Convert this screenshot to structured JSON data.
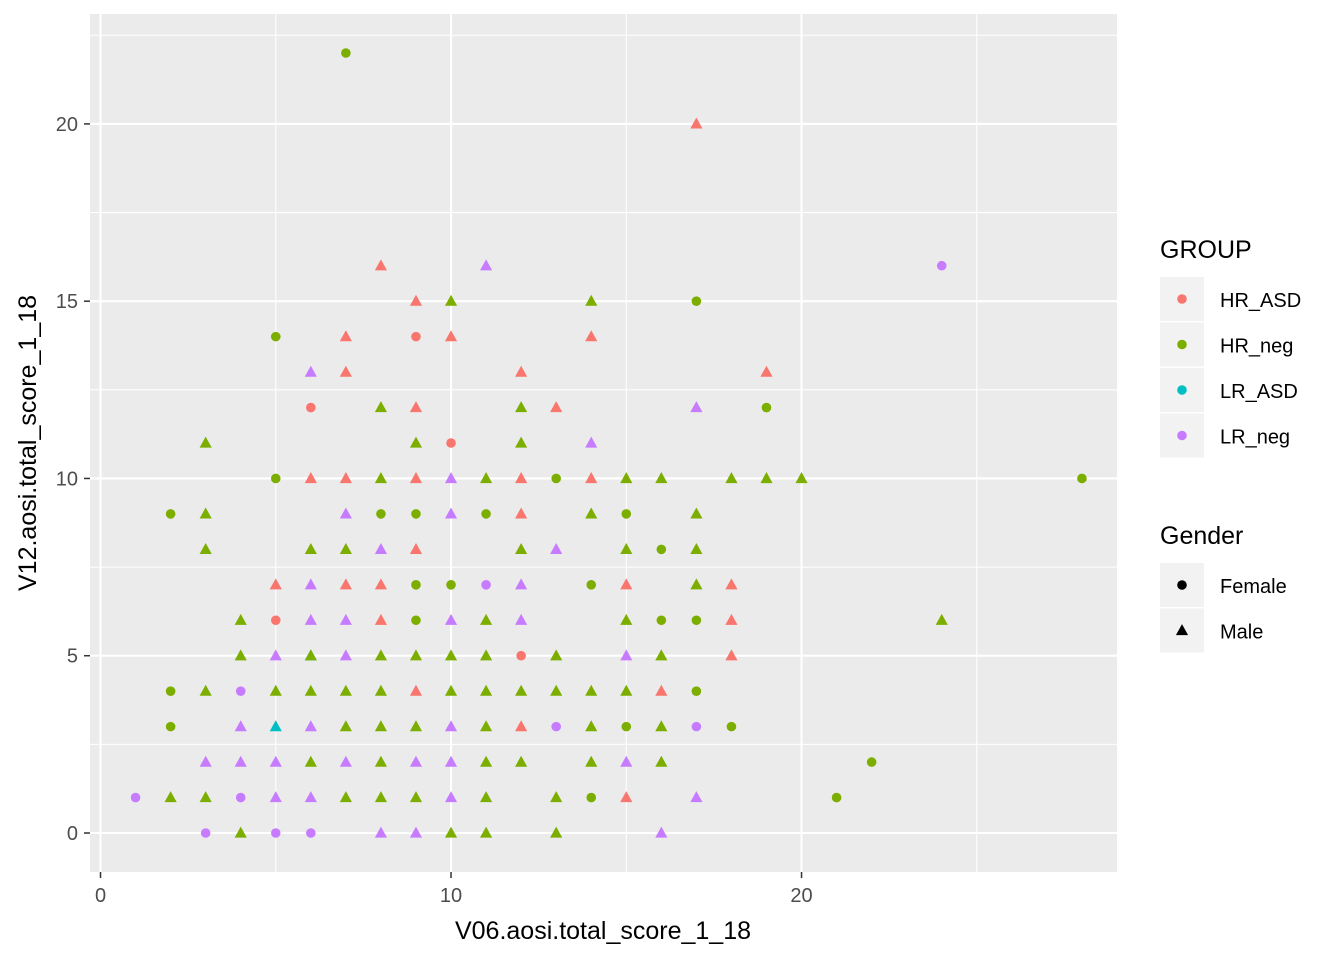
{
  "colors": {
    "panel_bg": "#EBEBEB",
    "grid": "#FFFFFF",
    "legend_key_bg": "#F2F2F2",
    "HR_ASD": "#F8766D",
    "HR_neg": "#7CAE00",
    "LR_ASD": "#00BFC4",
    "LR_neg": "#C77CFF"
  },
  "chart_data": {
    "type": "scatter",
    "title": "",
    "xlabel": "V06.aosi.total_score_1_18",
    "ylabel": "V12.aosi.total_score_1_18",
    "xlim": [
      -0.3,
      29.0
    ],
    "ylim": [
      -1.1,
      23.1
    ],
    "x_ticks": [
      0,
      10,
      20
    ],
    "y_ticks": [
      0,
      5,
      10,
      15,
      20
    ],
    "grid": true,
    "legend_position": "right",
    "color_legend": {
      "title": "GROUP",
      "entries": [
        "HR_ASD",
        "HR_neg",
        "LR_ASD",
        "LR_neg"
      ]
    },
    "shape_legend": {
      "title": "Gender",
      "entries": [
        {
          "label": "Female",
          "shape": "circle"
        },
        {
          "label": "Male",
          "shape": "triangle"
        }
      ]
    },
    "points": [
      [
        7,
        22,
        "HR_neg",
        "F"
      ],
      [
        17,
        20,
        "HR_ASD",
        "M"
      ],
      [
        24,
        16,
        "LR_neg",
        "F"
      ],
      [
        8,
        16,
        "HR_ASD",
        "M"
      ],
      [
        11,
        16,
        "LR_neg",
        "M"
      ],
      [
        9,
        15,
        "HR_ASD",
        "M"
      ],
      [
        10,
        15,
        "HR_neg",
        "M"
      ],
      [
        14,
        15,
        "HR_neg",
        "M"
      ],
      [
        17,
        15,
        "HR_neg",
        "F"
      ],
      [
        5,
        14,
        "HR_neg",
        "F"
      ],
      [
        7,
        14,
        "HR_ASD",
        "M"
      ],
      [
        9,
        14,
        "HR_ASD",
        "F"
      ],
      [
        10,
        14,
        "HR_ASD",
        "M"
      ],
      [
        14,
        14,
        "HR_ASD",
        "M"
      ],
      [
        6,
        13,
        "LR_neg",
        "M"
      ],
      [
        7,
        13,
        "HR_ASD",
        "M"
      ],
      [
        12,
        13,
        "HR_ASD",
        "M"
      ],
      [
        19,
        13,
        "HR_ASD",
        "M"
      ],
      [
        6,
        12,
        "HR_ASD",
        "F"
      ],
      [
        8,
        12,
        "HR_neg",
        "M"
      ],
      [
        9,
        12,
        "HR_ASD",
        "M"
      ],
      [
        12,
        12,
        "HR_neg",
        "M"
      ],
      [
        13,
        12,
        "HR_ASD",
        "M"
      ],
      [
        17,
        12,
        "LR_neg",
        "M"
      ],
      [
        19,
        12,
        "HR_neg",
        "F"
      ],
      [
        3,
        11,
        "HR_neg",
        "M"
      ],
      [
        9,
        11,
        "HR_neg",
        "M"
      ],
      [
        10,
        11,
        "HR_ASD",
        "F"
      ],
      [
        12,
        11,
        "HR_neg",
        "M"
      ],
      [
        14,
        11,
        "LR_neg",
        "M"
      ],
      [
        5,
        10,
        "HR_neg",
        "F"
      ],
      [
        6,
        10,
        "HR_ASD",
        "M"
      ],
      [
        7,
        10,
        "HR_ASD",
        "M"
      ],
      [
        8,
        10,
        "HR_neg",
        "M"
      ],
      [
        9,
        10,
        "HR_ASD",
        "M"
      ],
      [
        10,
        10,
        "LR_neg",
        "M"
      ],
      [
        11,
        10,
        "HR_neg",
        "M"
      ],
      [
        12,
        10,
        "HR_ASD",
        "M"
      ],
      [
        13,
        10,
        "HR_neg",
        "F"
      ],
      [
        14,
        10,
        "HR_ASD",
        "M"
      ],
      [
        15,
        10,
        "HR_neg",
        "M"
      ],
      [
        16,
        10,
        "HR_neg",
        "M"
      ],
      [
        18,
        10,
        "HR_neg",
        "M"
      ],
      [
        19,
        10,
        "HR_neg",
        "M"
      ],
      [
        20,
        10,
        "HR_neg",
        "M"
      ],
      [
        28,
        10,
        "HR_neg",
        "F"
      ],
      [
        2,
        9,
        "HR_neg",
        "F"
      ],
      [
        3,
        9,
        "HR_neg",
        "M"
      ],
      [
        7,
        9,
        "LR_neg",
        "M"
      ],
      [
        8,
        9,
        "HR_neg",
        "F"
      ],
      [
        9,
        9,
        "HR_neg",
        "F"
      ],
      [
        10,
        9,
        "LR_neg",
        "M"
      ],
      [
        11,
        9,
        "HR_neg",
        "F"
      ],
      [
        12,
        9,
        "HR_ASD",
        "M"
      ],
      [
        14,
        9,
        "HR_neg",
        "M"
      ],
      [
        15,
        9,
        "HR_neg",
        "F"
      ],
      [
        17,
        9,
        "HR_neg",
        "M"
      ],
      [
        3,
        8,
        "HR_neg",
        "M"
      ],
      [
        6,
        8,
        "HR_neg",
        "M"
      ],
      [
        7,
        8,
        "HR_neg",
        "M"
      ],
      [
        8,
        8,
        "LR_neg",
        "M"
      ],
      [
        9,
        8,
        "HR_ASD",
        "M"
      ],
      [
        12,
        8,
        "HR_neg",
        "M"
      ],
      [
        13,
        8,
        "LR_neg",
        "M"
      ],
      [
        15,
        8,
        "HR_neg",
        "M"
      ],
      [
        16,
        8,
        "HR_neg",
        "F"
      ],
      [
        17,
        8,
        "HR_neg",
        "M"
      ],
      [
        5,
        7,
        "HR_ASD",
        "M"
      ],
      [
        6,
        7,
        "LR_neg",
        "M"
      ],
      [
        7,
        7,
        "HR_ASD",
        "M"
      ],
      [
        8,
        7,
        "HR_ASD",
        "M"
      ],
      [
        9,
        7,
        "HR_neg",
        "F"
      ],
      [
        10,
        7,
        "HR_neg",
        "F"
      ],
      [
        11,
        7,
        "LR_neg",
        "F"
      ],
      [
        12,
        7,
        "LR_neg",
        "M"
      ],
      [
        14,
        7,
        "HR_neg",
        "F"
      ],
      [
        15,
        7,
        "HR_ASD",
        "M"
      ],
      [
        17,
        7,
        "HR_neg",
        "M"
      ],
      [
        18,
        7,
        "HR_ASD",
        "M"
      ],
      [
        4,
        6,
        "HR_neg",
        "M"
      ],
      [
        5,
        6,
        "HR_ASD",
        "F"
      ],
      [
        6,
        6,
        "LR_neg",
        "M"
      ],
      [
        7,
        6,
        "LR_neg",
        "M"
      ],
      [
        8,
        6,
        "HR_ASD",
        "M"
      ],
      [
        9,
        6,
        "HR_neg",
        "F"
      ],
      [
        10,
        6,
        "LR_neg",
        "M"
      ],
      [
        11,
        6,
        "HR_neg",
        "M"
      ],
      [
        12,
        6,
        "LR_neg",
        "M"
      ],
      [
        15,
        6,
        "HR_neg",
        "M"
      ],
      [
        16,
        6,
        "HR_neg",
        "F"
      ],
      [
        17,
        6,
        "HR_neg",
        "F"
      ],
      [
        18,
        6,
        "HR_ASD",
        "M"
      ],
      [
        24,
        6,
        "HR_neg",
        "M"
      ],
      [
        4,
        5,
        "HR_neg",
        "M"
      ],
      [
        5,
        5,
        "LR_neg",
        "M"
      ],
      [
        6,
        5,
        "LR_ASD",
        "M"
      ],
      [
        6,
        5,
        "HR_neg",
        "M"
      ],
      [
        7,
        5,
        "LR_neg",
        "M"
      ],
      [
        8,
        5,
        "HR_neg",
        "M"
      ],
      [
        9,
        5,
        "HR_neg",
        "M"
      ],
      [
        10,
        5,
        "HR_neg",
        "M"
      ],
      [
        11,
        5,
        "HR_neg",
        "M"
      ],
      [
        12,
        5,
        "HR_ASD",
        "F"
      ],
      [
        13,
        5,
        "HR_neg",
        "M"
      ],
      [
        15,
        5,
        "LR_neg",
        "M"
      ],
      [
        16,
        5,
        "HR_neg",
        "M"
      ],
      [
        18,
        5,
        "HR_ASD",
        "M"
      ],
      [
        2,
        4,
        "HR_neg",
        "F"
      ],
      [
        3,
        4,
        "HR_neg",
        "M"
      ],
      [
        4,
        4,
        "LR_neg",
        "F"
      ],
      [
        5,
        4,
        "HR_neg",
        "M"
      ],
      [
        6,
        4,
        "HR_neg",
        "M"
      ],
      [
        7,
        4,
        "HR_neg",
        "M"
      ],
      [
        8,
        4,
        "HR_neg",
        "M"
      ],
      [
        9,
        4,
        "HR_ASD",
        "M"
      ],
      [
        10,
        4,
        "HR_neg",
        "M"
      ],
      [
        11,
        4,
        "HR_neg",
        "M"
      ],
      [
        12,
        4,
        "HR_neg",
        "M"
      ],
      [
        13,
        4,
        "HR_neg",
        "M"
      ],
      [
        14,
        4,
        "HR_neg",
        "M"
      ],
      [
        15,
        4,
        "HR_neg",
        "M"
      ],
      [
        16,
        4,
        "HR_ASD",
        "M"
      ],
      [
        17,
        4,
        "HR_neg",
        "F"
      ],
      [
        2,
        3,
        "HR_neg",
        "F"
      ],
      [
        4,
        3,
        "LR_neg",
        "M"
      ],
      [
        5,
        3,
        "LR_ASD",
        "M"
      ],
      [
        6,
        3,
        "LR_neg",
        "M"
      ],
      [
        7,
        3,
        "HR_neg",
        "M"
      ],
      [
        8,
        3,
        "HR_neg",
        "M"
      ],
      [
        9,
        3,
        "HR_neg",
        "M"
      ],
      [
        10,
        3,
        "LR_neg",
        "M"
      ],
      [
        11,
        3,
        "HR_neg",
        "M"
      ],
      [
        12,
        3,
        "HR_ASD",
        "M"
      ],
      [
        13,
        3,
        "LR_neg",
        "F"
      ],
      [
        14,
        3,
        "HR_neg",
        "M"
      ],
      [
        15,
        3,
        "HR_neg",
        "F"
      ],
      [
        16,
        3,
        "HR_neg",
        "M"
      ],
      [
        17,
        3,
        "LR_neg",
        "F"
      ],
      [
        18,
        3,
        "HR_neg",
        "F"
      ],
      [
        3,
        2,
        "LR_neg",
        "M"
      ],
      [
        4,
        2,
        "LR_neg",
        "M"
      ],
      [
        5,
        2,
        "LR_neg",
        "M"
      ],
      [
        6,
        2,
        "HR_neg",
        "M"
      ],
      [
        7,
        2,
        "LR_neg",
        "M"
      ],
      [
        8,
        2,
        "HR_neg",
        "M"
      ],
      [
        9,
        2,
        "LR_neg",
        "M"
      ],
      [
        10,
        2,
        "LR_neg",
        "M"
      ],
      [
        11,
        2,
        "HR_neg",
        "M"
      ],
      [
        12,
        2,
        "HR_neg",
        "M"
      ],
      [
        14,
        2,
        "HR_neg",
        "M"
      ],
      [
        15,
        2,
        "LR_neg",
        "M"
      ],
      [
        16,
        2,
        "HR_neg",
        "M"
      ],
      [
        22,
        2,
        "HR_neg",
        "F"
      ],
      [
        1,
        1,
        "LR_neg",
        "F"
      ],
      [
        2,
        1,
        "HR_neg",
        "M"
      ],
      [
        3,
        1,
        "HR_neg",
        "M"
      ],
      [
        4,
        1,
        "LR_neg",
        "F"
      ],
      [
        5,
        1,
        "LR_neg",
        "M"
      ],
      [
        6,
        1,
        "LR_neg",
        "M"
      ],
      [
        7,
        1,
        "HR_neg",
        "M"
      ],
      [
        8,
        1,
        "HR_neg",
        "M"
      ],
      [
        9,
        1,
        "HR_neg",
        "M"
      ],
      [
        10,
        1,
        "LR_neg",
        "M"
      ],
      [
        11,
        1,
        "HR_neg",
        "M"
      ],
      [
        13,
        1,
        "HR_neg",
        "M"
      ],
      [
        14,
        1,
        "HR_neg",
        "F"
      ],
      [
        15,
        1,
        "HR_ASD",
        "M"
      ],
      [
        17,
        1,
        "LR_neg",
        "M"
      ],
      [
        21,
        1,
        "HR_neg",
        "F"
      ],
      [
        3,
        0,
        "LR_neg",
        "F"
      ],
      [
        4,
        0,
        "HR_neg",
        "M"
      ],
      [
        5,
        0,
        "LR_neg",
        "F"
      ],
      [
        6,
        0,
        "LR_neg",
        "F"
      ],
      [
        8,
        0,
        "LR_neg",
        "M"
      ],
      [
        9,
        0,
        "LR_neg",
        "M"
      ],
      [
        10,
        0,
        "HR_neg",
        "M"
      ],
      [
        11,
        0,
        "HR_neg",
        "M"
      ],
      [
        13,
        0,
        "HR_neg",
        "M"
      ],
      [
        16,
        0,
        "LR_neg",
        "M"
      ]
    ]
  }
}
